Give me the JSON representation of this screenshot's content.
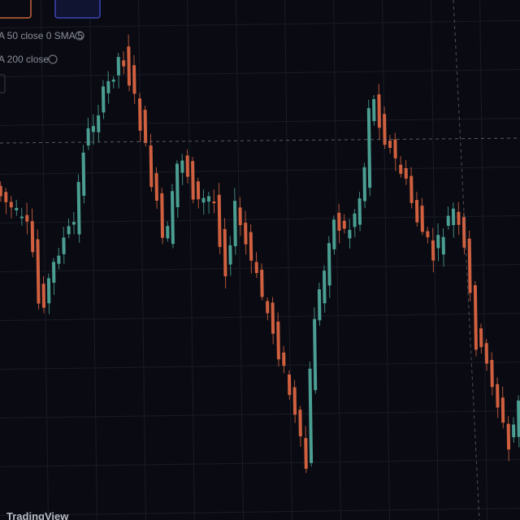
{
  "legend": {
    "sma50": "A 50 close 0 SMA 5",
    "sma200": "A 200 close"
  },
  "footer": {
    "brand": "TradingView"
  }
}
